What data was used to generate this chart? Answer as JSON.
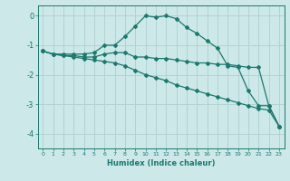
{
  "background_color": "#cce8e8",
  "grid_color": "#afd0ce",
  "line_color": "#1a7a6e",
  "xlabel": "Humidex (Indice chaleur)",
  "xlim": [
    -0.5,
    23.5
  ],
  "ylim": [
    -4.5,
    0.35
  ],
  "xticks": [
    0,
    1,
    2,
    3,
    4,
    5,
    6,
    7,
    8,
    9,
    10,
    11,
    12,
    13,
    14,
    15,
    16,
    17,
    18,
    19,
    20,
    21,
    22,
    23
  ],
  "yticks": [
    0,
    -1,
    -2,
    -3,
    -4
  ],
  "series": [
    {
      "x": [
        0,
        1,
        2,
        3,
        4,
        5,
        6,
        7,
        8,
        9,
        10,
        11,
        12,
        13,
        14,
        15,
        16,
        17,
        18,
        19,
        20,
        21,
        22,
        23
      ],
      "y": [
        -1.2,
        -1.3,
        -1.3,
        -1.3,
        -1.3,
        -1.25,
        -1.0,
        -1.0,
        -0.7,
        -0.35,
        0.0,
        -0.05,
        0.0,
        -0.1,
        -0.4,
        -0.6,
        -0.85,
        -1.1,
        -1.7,
        -1.75,
        -2.55,
        -3.05,
        -3.05,
        -3.75
      ]
    },
    {
      "x": [
        0,
        1,
        2,
        3,
        4,
        5,
        6,
        7,
        8,
        9,
        10,
        11,
        12,
        13,
        14,
        15,
        16,
        17,
        18,
        19,
        20,
        21,
        22,
        23
      ],
      "y": [
        -1.2,
        -1.3,
        -1.35,
        -1.35,
        -1.4,
        -1.4,
        -1.3,
        -1.25,
        -1.25,
        -1.4,
        -1.4,
        -1.45,
        -1.45,
        -1.5,
        -1.55,
        -1.6,
        -1.6,
        -1.65,
        -1.65,
        -1.7,
        -1.75,
        -1.75,
        -3.05,
        -3.75
      ]
    },
    {
      "x": [
        0,
        1,
        2,
        3,
        4,
        5,
        6,
        7,
        8,
        9,
        10,
        11,
        12,
        13,
        14,
        15,
        16,
        17,
        18,
        19,
        20,
        21,
        22,
        23
      ],
      "y": [
        -1.2,
        -1.3,
        -1.35,
        -1.4,
        -1.45,
        -1.5,
        -1.55,
        -1.6,
        -1.7,
        -1.85,
        -2.0,
        -2.1,
        -2.2,
        -2.35,
        -2.45,
        -2.55,
        -2.65,
        -2.75,
        -2.85,
        -2.95,
        -3.05,
        -3.15,
        -3.2,
        -3.75
      ]
    }
  ]
}
